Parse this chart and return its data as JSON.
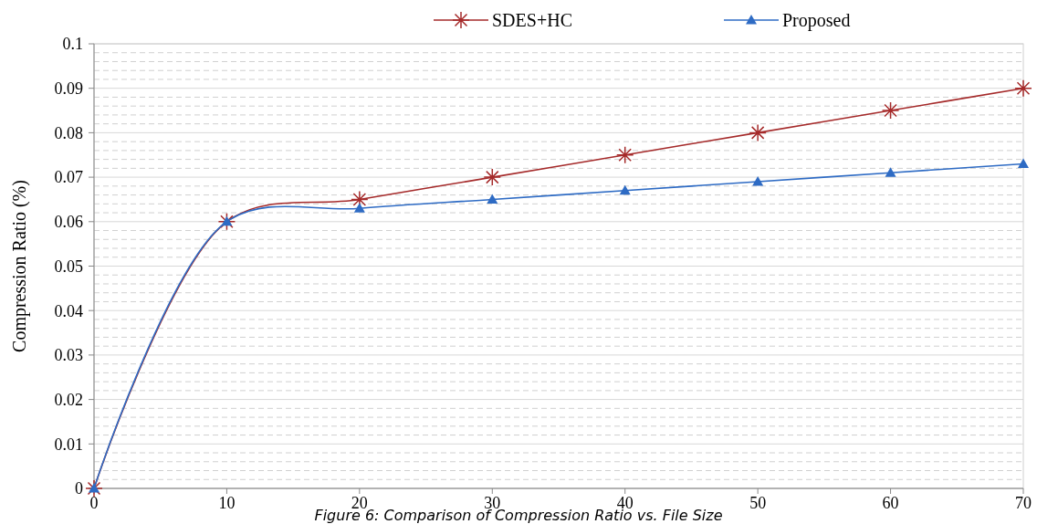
{
  "chart_data": {
    "type": "line",
    "ylabel": "Compression Ratio (%)",
    "x": [
      0,
      10,
      20,
      30,
      40,
      50,
      60,
      70
    ],
    "xlim": [
      0,
      70
    ],
    "xticks": [
      0,
      10,
      20,
      30,
      40,
      50,
      60,
      70
    ],
    "ylim": [
      0,
      0.1
    ],
    "yticks": [
      0,
      0.01,
      0.02,
      0.03,
      0.04,
      0.05,
      0.06,
      0.07,
      0.08,
      0.09,
      0.1
    ],
    "series": [
      {
        "name": "SDES+HC",
        "color": "#a52a2a",
        "marker": "cross",
        "values": [
          0,
          0.06,
          0.065,
          0.07,
          0.075,
          0.08,
          0.085,
          0.09
        ]
      },
      {
        "name": "Proposed",
        "color": "#2e6bc4",
        "marker": "triangle",
        "values": [
          0,
          0.06,
          0.063,
          0.065,
          0.067,
          0.069,
          0.071,
          0.073
        ]
      }
    ],
    "grid": "y",
    "legend": "top",
    "annotations": [
      "Figure 6: Comparison of Compression Ratio vs. File Size"
    ]
  }
}
